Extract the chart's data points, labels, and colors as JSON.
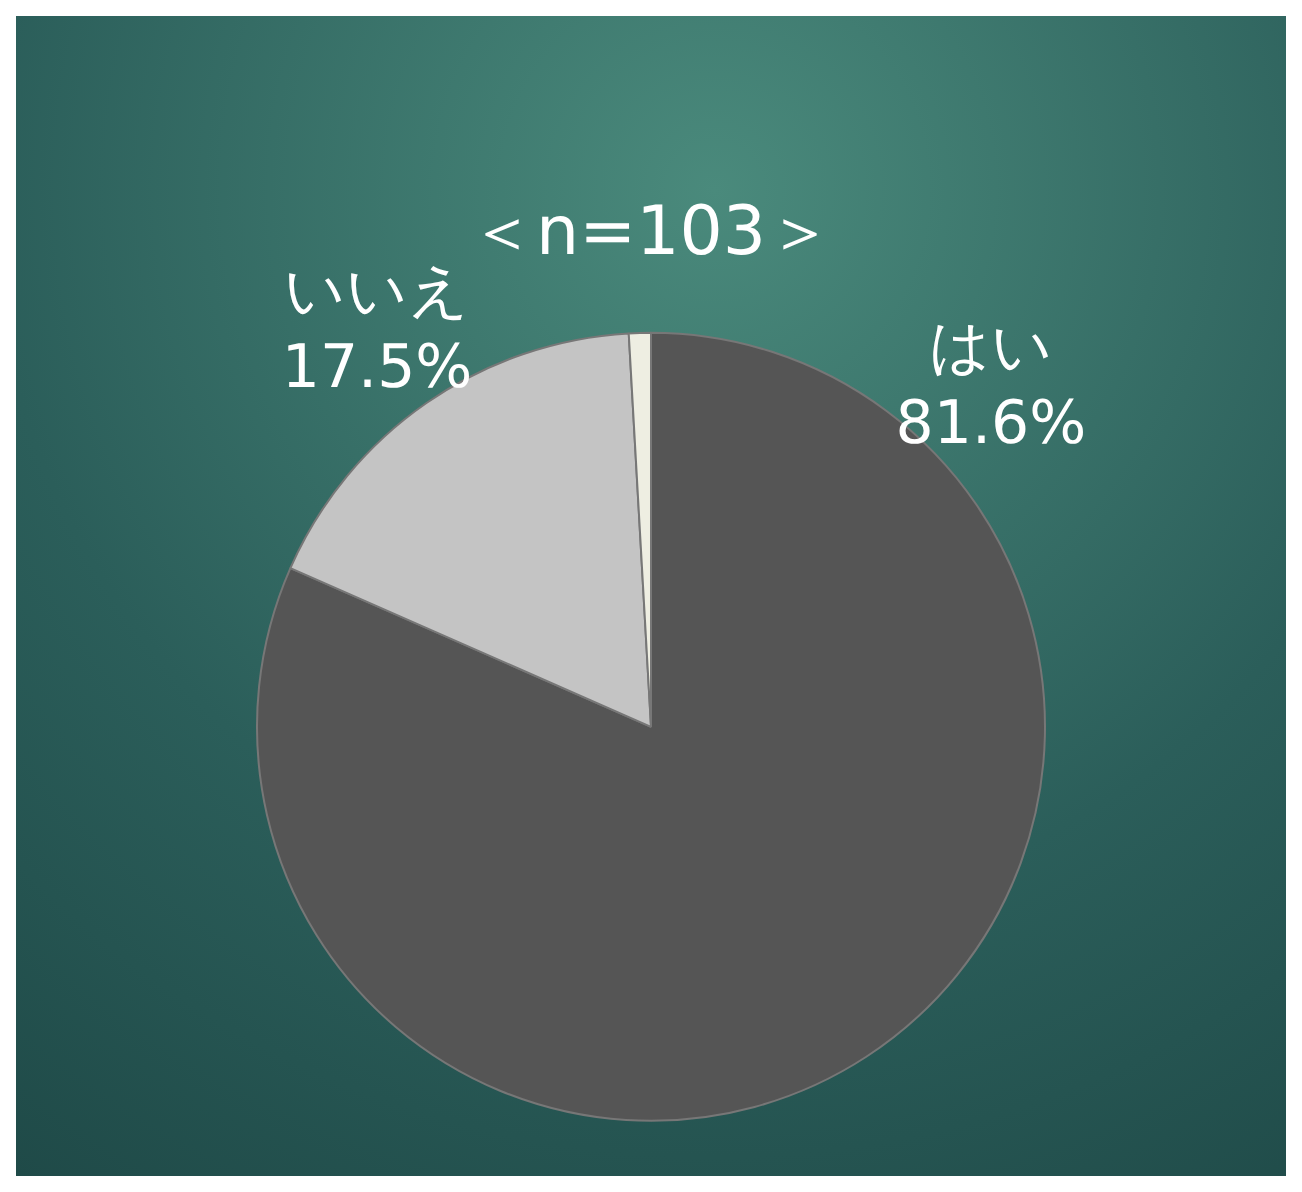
{
  "chart_data": {
    "type": "pie",
    "title": "＜n=103＞",
    "categories": [
      "はい",
      "いいえ",
      null
    ],
    "values": [
      81.6,
      17.5,
      0.9
    ],
    "value_labels": [
      "81.6%",
      "17.5%",
      null
    ],
    "colors": [
      "#555555",
      "#c4c4c4",
      "#eeeee2"
    ],
    "legend": false
  }
}
